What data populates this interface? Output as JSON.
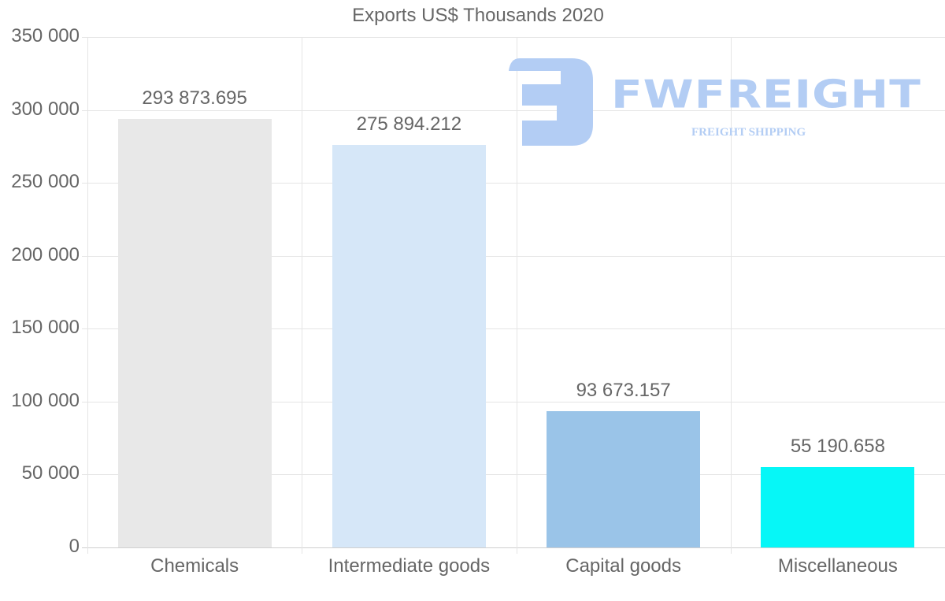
{
  "chart_data": {
    "type": "bar",
    "title": "Exports US$ Thousands 2020",
    "xlabel": "",
    "ylabel": "",
    "categories": [
      "Chemicals",
      "Intermediate goods",
      "Capital goods",
      "Miscellaneous"
    ],
    "values": [
      293873.695,
      275894.212,
      93673.157,
      55190.658
    ],
    "value_labels": [
      "293 873.695",
      "275 894.212",
      "93 673.157",
      "55 190.658"
    ],
    "colors": [
      "#e8e8e8",
      "#d6e7f8",
      "#9ac4e8",
      "#06f7f7"
    ],
    "ylim": [
      0,
      350000
    ],
    "yticks": [
      0,
      50000,
      100000,
      150000,
      200000,
      250000,
      300000,
      350000
    ],
    "ytick_labels": [
      "0",
      "50 000",
      "100 000",
      "150 000",
      "200 000",
      "250 000",
      "300 000",
      "350 000"
    ],
    "grid": true,
    "legend": null
  },
  "watermark": {
    "brand": "FWFREIGHT",
    "tagline": "FREIGHT SHIPPING",
    "color": "#b3cdf4"
  }
}
